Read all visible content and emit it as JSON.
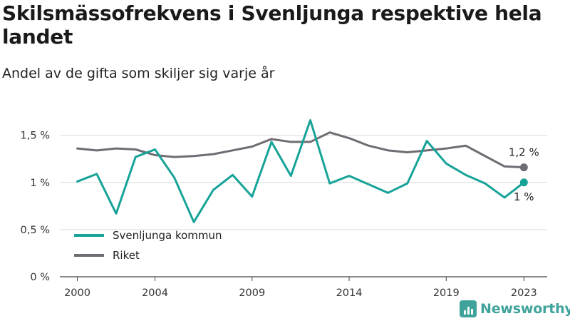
{
  "header": {
    "title": "Skilsmässofrekvens i Svenljunga respektive hela landet",
    "subtitle": "Andel av de gifta som skiljer sig varje år"
  },
  "brand": {
    "name": "Newsworthy",
    "color": "#3fa39b"
  },
  "chart_data": {
    "type": "line",
    "title": "Skilsmässofrekvens i Svenljunga respektive hela landet",
    "subtitle": "Andel av de gifta som skiljer sig varje år",
    "x": [
      2000,
      2001,
      2002,
      2003,
      2004,
      2005,
      2006,
      2007,
      2008,
      2009,
      2010,
      2011,
      2012,
      2013,
      2014,
      2015,
      2016,
      2017,
      2018,
      2019,
      2020,
      2021,
      2022,
      2023
    ],
    "x_tick_values": [
      2000,
      2004,
      2009,
      2014,
      2019,
      2023
    ],
    "x_tick_labels": [
      "2000",
      "2004",
      "2009",
      "2014",
      "2019",
      "2023"
    ],
    "xlim": [
      1999.1,
      2024.2
    ],
    "y_tick_values": [
      0,
      0.5,
      1,
      1.5
    ],
    "y_tick_labels": [
      "0 %",
      "0,5 %",
      "1 %",
      "1,5 %"
    ],
    "ylim": [
      0,
      1.8
    ],
    "grid": true,
    "legend_position": "bottom-left",
    "series": [
      {
        "name": "Svenljunga kommun",
        "color": "#17a398",
        "values": [
          1.01,
          1.09,
          0.67,
          1.27,
          1.35,
          1.05,
          0.58,
          0.92,
          1.08,
          0.85,
          1.43,
          1.07,
          1.66,
          0.99,
          1.07,
          0.98,
          0.89,
          0.99,
          1.44,
          1.2,
          1.08,
          0.99,
          0.84,
          1.0
        ],
        "end_label": "1 %"
      },
      {
        "name": "Riket",
        "color": "#6f6c73",
        "values": [
          1.36,
          1.34,
          1.36,
          1.35,
          1.29,
          1.27,
          1.28,
          1.3,
          1.34,
          1.38,
          1.46,
          1.43,
          1.43,
          1.53,
          1.47,
          1.39,
          1.34,
          1.32,
          1.34,
          1.36,
          1.39,
          1.28,
          1.17,
          1.16
        ],
        "end_label": "1,2 %"
      }
    ]
  }
}
